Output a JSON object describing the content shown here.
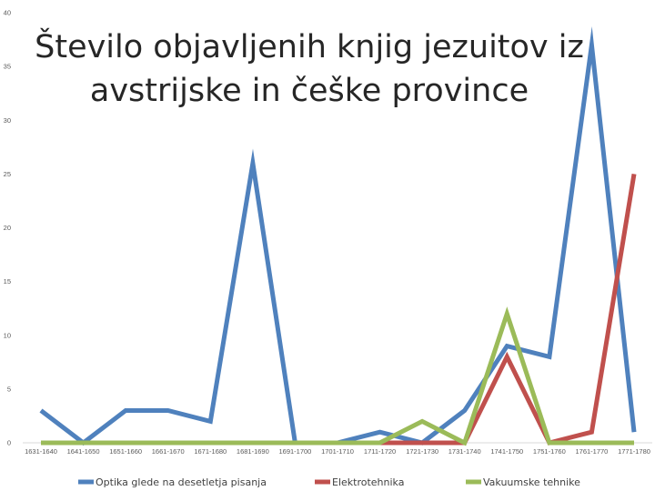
{
  "chart_data": {
    "type": "line",
    "title_lines": [
      "Število objavljenih knjig jezuitov iz",
      "avstrijske in češke province"
    ],
    "xlabel": "",
    "ylabel": "",
    "ylim": [
      0,
      40
    ],
    "y_ticks": [
      0,
      5,
      10,
      15,
      20,
      25,
      30,
      35,
      40
    ],
    "grid": false,
    "legend_position": "bottom",
    "categories": [
      "1631-1640",
      "1641-1650",
      "1651-1660",
      "1661-1670",
      "1671-1680",
      "1681-1690",
      "1691-1700",
      "1701-1710",
      "1711-1720",
      "1721-1730",
      "1731-1740",
      "1741-1750",
      "1751-1760",
      "1761-1770",
      "1771-1780"
    ],
    "series": [
      {
        "name": "Optika glede na desetletja pisanja",
        "color": "#4F81BD",
        "values": [
          3,
          0,
          3,
          3,
          2,
          26,
          0,
          0,
          1,
          0,
          3,
          9,
          8,
          37,
          1
        ]
      },
      {
        "name": "Elektrotehnika",
        "color": "#C0504D",
        "values": [
          0,
          0,
          0,
          0,
          0,
          0,
          0,
          0,
          0,
          0,
          0,
          8,
          0,
          1,
          25
        ]
      },
      {
        "name": "Vakuumske tehnike",
        "color": "#9BBB59",
        "values": [
          0,
          0,
          0,
          0,
          0,
          0,
          0,
          0,
          0,
          2,
          0,
          12,
          0,
          0,
          0
        ]
      }
    ]
  }
}
